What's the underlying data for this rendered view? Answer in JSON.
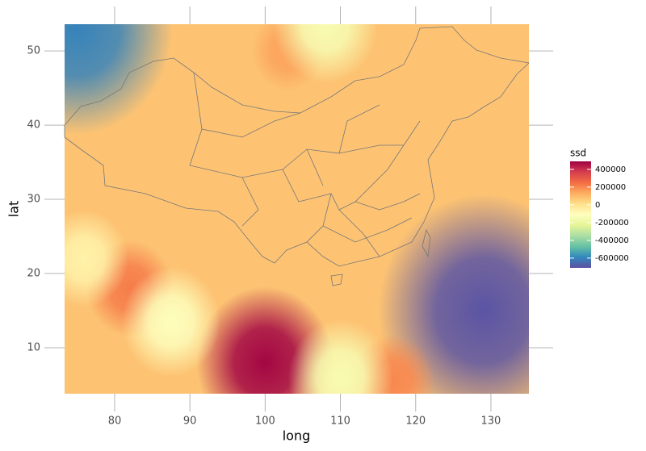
{
  "chart_data": {
    "type": "heatmap",
    "x_label": "long",
    "y_label": "lat",
    "xlim": [
      73.35,
      135.05
    ],
    "ylim": [
      3.8,
      53.6
    ],
    "xticks": [
      80,
      90,
      100,
      110,
      120,
      130
    ],
    "yticks": [
      10,
      20,
      30,
      40,
      50
    ],
    "grid": true,
    "base_value": 80000,
    "points": {
      "x": [
        100,
        129,
        75,
        82,
        87.5,
        117,
        110,
        103,
        108,
        76
      ],
      "y": [
        8,
        15,
        53,
        18,
        13.5,
        5.5,
        6,
        50,
        53.5,
        22
      ],
      "values": [
        480000,
        -700000,
        -600000,
        220000,
        -120000,
        200000,
        -150000,
        150000,
        -150000,
        -60000
      ]
    },
    "legend": {
      "title": "ssd",
      "colorlim": [
        -710000,
        490000
      ],
      "ticks": [
        400000,
        200000,
        0,
        -200000,
        -400000,
        -600000
      ],
      "colors": [
        "#5e4fa2",
        "#3288bd",
        "#66c2a5",
        "#abdda4",
        "#e6f598",
        "#ffffbf",
        "#fee08b",
        "#fdae61",
        "#f46d43",
        "#d53e4f",
        "#9e0142"
      ]
    }
  }
}
